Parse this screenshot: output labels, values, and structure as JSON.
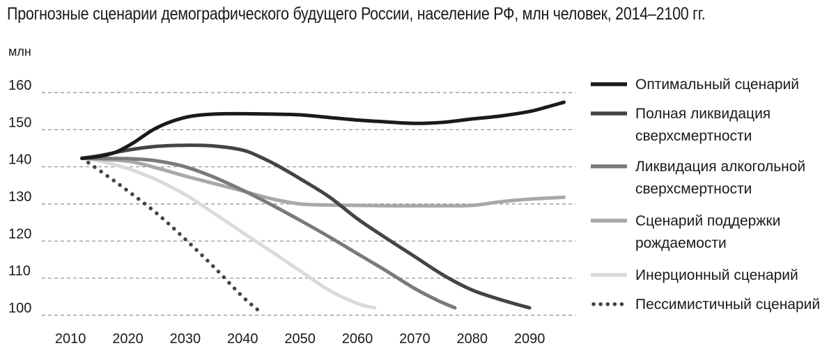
{
  "chart_data": {
    "type": "line",
    "title": "Прогнозные сценарии демографического будущего России, население РФ, млн человек, 2014–2100 гг.",
    "ylabel": "млн",
    "xlabel": "",
    "xlim": [
      2005,
      2098
    ],
    "ylim": [
      100,
      160
    ],
    "yticks": [
      100,
      110,
      120,
      130,
      140,
      150,
      160
    ],
    "xticks": [
      2010,
      2020,
      2030,
      2040,
      2050,
      2060,
      2070,
      2080,
      2090
    ],
    "grid": "horizontal-dashed",
    "legend_position": "right",
    "series": [
      {
        "name": "Оптимальный сценарий",
        "color": "#1a1a1a",
        "style": "solid",
        "width": 5,
        "x": [
          2012,
          2015,
          2018,
          2021,
          2025,
          2030,
          2035,
          2040,
          2045,
          2050,
          2055,
          2060,
          2065,
          2070,
          2075,
          2080,
          2085,
          2090,
          2093,
          2096
        ],
        "y": [
          142.3,
          142.8,
          144.0,
          146.5,
          150.5,
          153.3,
          154.2,
          154.3,
          154.2,
          154.0,
          153.3,
          152.6,
          152.1,
          151.7,
          152.0,
          152.9,
          153.7,
          154.9,
          156.1,
          157.4
        ]
      },
      {
        "name": "Полная ликвидация сверхсмертности",
        "color": "#444444",
        "style": "solid",
        "width": 5,
        "x": [
          2012,
          2015,
          2020,
          2025,
          2030,
          2035,
          2040,
          2043,
          2046,
          2050,
          2055,
          2060,
          2065,
          2070,
          2075,
          2080,
          2085,
          2090
        ],
        "y": [
          142.3,
          143.0,
          144.5,
          145.5,
          145.8,
          145.6,
          144.5,
          142.7,
          140.4,
          136.8,
          132.0,
          126.0,
          120.8,
          115.8,
          110.8,
          106.8,
          104.2,
          102.0
        ]
      },
      {
        "name": "Ликвидация алкогольной сверхсмертности",
        "color": "#7a7a7a",
        "style": "solid",
        "width": 5,
        "x": [
          2012,
          2020,
          2025,
          2030,
          2035,
          2040,
          2045,
          2050,
          2055,
          2060,
          2065,
          2070,
          2074,
          2077
        ],
        "y": [
          142.3,
          142.2,
          141.6,
          140.0,
          137.2,
          133.7,
          129.8,
          125.6,
          121.2,
          116.6,
          112.0,
          107.2,
          104.0,
          102.0
        ]
      },
      {
        "name": "Сценарий поддержки рождаемости",
        "color": "#a8a8a8",
        "style": "solid",
        "width": 5,
        "x": [
          2012,
          2020,
          2025,
          2030,
          2035,
          2040,
          2045,
          2050,
          2055,
          2060,
          2065,
          2070,
          2075,
          2080,
          2085,
          2090,
          2096
        ],
        "y": [
          142.3,
          141.5,
          139.7,
          137.5,
          135.5,
          133.5,
          131.4,
          130.0,
          129.7,
          129.6,
          129.5,
          129.5,
          129.5,
          129.6,
          130.6,
          131.3,
          131.8
        ]
      },
      {
        "name": "Инерционный сценарий",
        "color": "#dadada",
        "style": "solid",
        "width": 5,
        "x": [
          2012,
          2015,
          2020,
          2025,
          2030,
          2035,
          2040,
          2045,
          2050,
          2055,
          2060,
          2063
        ],
        "y": [
          142.3,
          141.6,
          139.5,
          136.5,
          132.5,
          127.5,
          122.3,
          117.2,
          112.0,
          106.8,
          103.2,
          102.0
        ]
      },
      {
        "name": "Пессимистичный сценарий",
        "color": "#444444",
        "style": "dotted",
        "width": 5,
        "x": [
          2012,
          2016,
          2020,
          2025,
          2030,
          2035,
          2040,
          2043
        ],
        "y": [
          142.3,
          138.0,
          133.5,
          127.5,
          120.5,
          113.0,
          105.0,
          101.0
        ]
      }
    ]
  }
}
